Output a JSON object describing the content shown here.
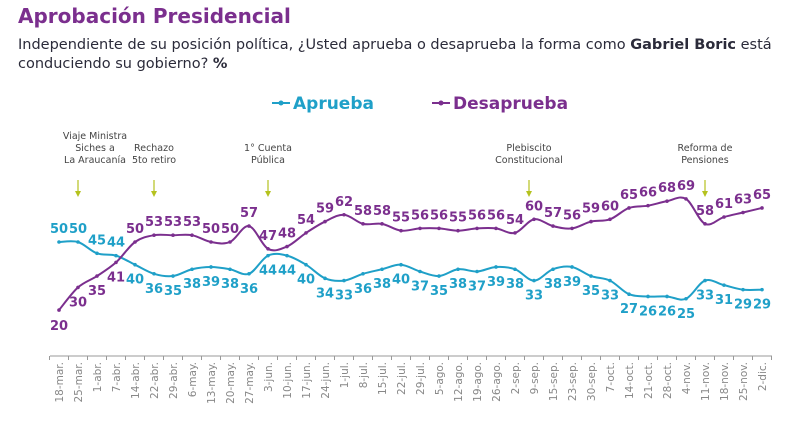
{
  "title": "Aprobación Presidencial",
  "subtitle": {
    "before": "Independiente de su posición política, ¿Usted aprueba o desaprueba la forma como ",
    "bold_name": "Gabriel Boric",
    "after": " está conduciendo su gobierno? ",
    "bold_unit": "%"
  },
  "chart_data": {
    "type": "line",
    "categories": [
      "18-mar.",
      "25-mar.",
      "1-abr.",
      "7-abr.",
      "14-abr.",
      "22-abr.",
      "29-abr.",
      "6-may.",
      "13-may.",
      "20-may.",
      "27-may.",
      "3-jun.",
      "10-jun.",
      "17-jun.",
      "24-jun.",
      "1-jul.",
      "8-jul.",
      "15-jul.",
      "22-jul.",
      "29-jul.",
      "5-ago.",
      "12-ago.",
      "19-ago.",
      "26-ago.",
      "2-sep.",
      "9-sep.",
      "15-sep.",
      "23-sep.",
      "30-sep.",
      "7-oct.",
      "14-oct.",
      "21-oct.",
      "28-oct.",
      "4-nov.",
      "11-nov.",
      "18-nov.",
      "25-nov.",
      "2-dic."
    ],
    "series": [
      {
        "name": "Aprueba",
        "color": "#1fa0c8",
        "values": [
          50,
          50,
          45,
          44,
          40,
          36,
          35,
          38,
          39,
          38,
          36,
          44,
          44,
          40,
          34,
          33,
          36,
          38,
          40,
          37,
          35,
          38,
          37,
          39,
          38,
          33,
          38,
          39,
          35,
          33,
          27,
          26,
          26,
          25,
          33,
          31,
          29,
          29
        ]
      },
      {
        "name": "Desaprueba",
        "color": "#7b2f8e",
        "values": [
          20,
          30,
          35,
          41,
          50,
          53,
          53,
          53,
          50,
          50,
          57,
          47,
          48,
          54,
          59,
          62,
          58,
          58,
          55,
          56,
          56,
          55,
          56,
          56,
          54,
          60,
          57,
          56,
          59,
          60,
          65,
          66,
          68,
          69,
          58,
          61,
          63,
          65
        ]
      }
    ],
    "legend_position": "top-center",
    "grid": false,
    "data_labels": true,
    "annotations": [
      {
        "category": "25-mar.",
        "text": [
          "Viaje Ministra",
          "Siches a",
          "La Araucanía"
        ]
      },
      {
        "category": "22-abr.",
        "text": [
          "Rechazo",
          "5to retiro"
        ]
      },
      {
        "category": "3-jun.",
        "text": [
          "1° Cuenta",
          "Pública"
        ]
      },
      {
        "category": "9-sep.",
        "text": [
          "Plebiscito",
          "Constitucional"
        ]
      },
      {
        "category": "11-nov.",
        "text": [
          "Reforma de",
          "Pensiones"
        ]
      }
    ],
    "annotation_color": "#b5c21e"
  }
}
